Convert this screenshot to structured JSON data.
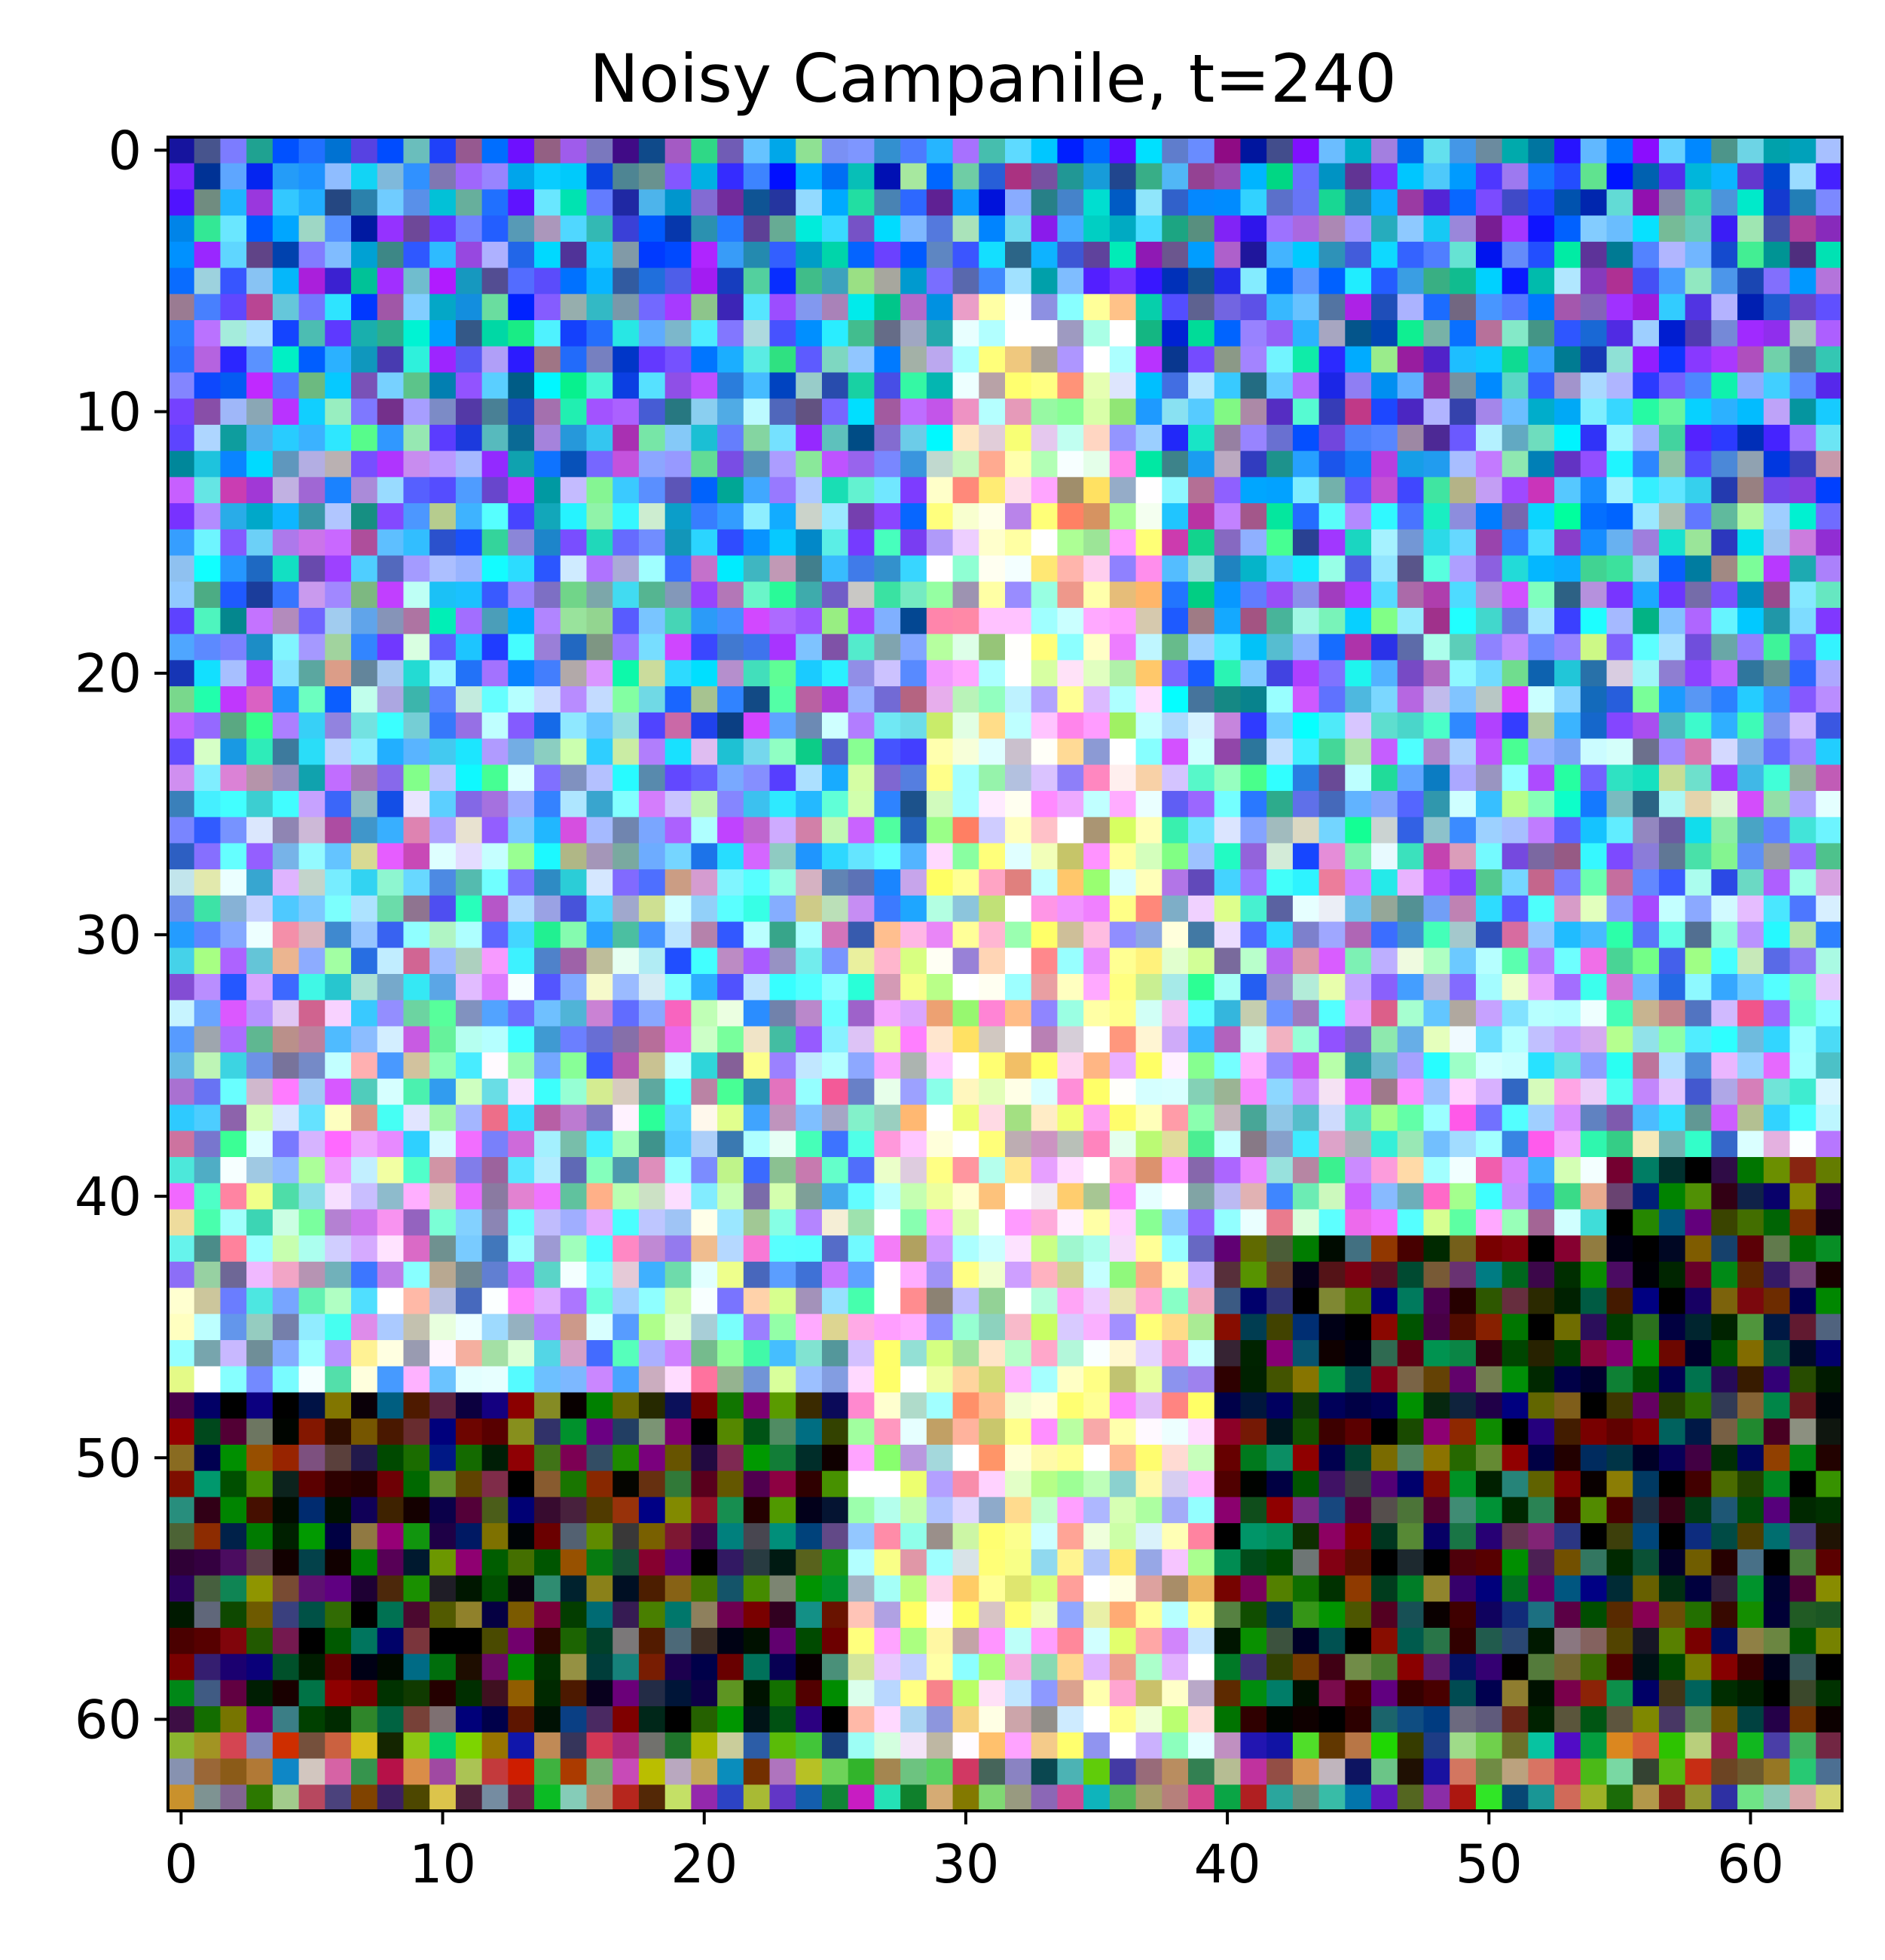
{
  "figure": {
    "title": "Noisy Campanile, t=240"
  },
  "image": {
    "description_type": "noisy pixelated photograph",
    "grid_size": 64
  },
  "axes": {
    "x_ticks": [
      "0",
      "10",
      "20",
      "30",
      "40",
      "50",
      "60"
    ],
    "y_ticks": [
      "0",
      "10",
      "20",
      "30",
      "40",
      "50",
      "60"
    ],
    "x_tick_values": [
      0,
      10,
      20,
      30,
      40,
      50,
      60
    ],
    "y_tick_values": [
      0,
      10,
      20,
      30,
      40,
      50,
      60
    ],
    "xlim": [
      -0.5,
      63.5
    ],
    "ylim": [
      63.5,
      -0.5
    ]
  },
  "colors": {
    "sky": "#4f8ef0",
    "sky_light": "#9fd8f6",
    "tower": "#f6f0c8",
    "foliage": "#2b3318",
    "ground": "#6e7d55",
    "axis": "#000000"
  }
}
